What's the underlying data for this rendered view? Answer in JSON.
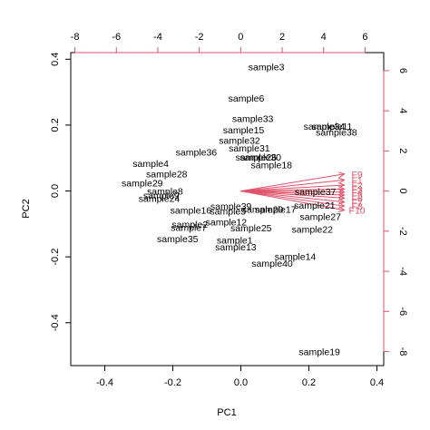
{
  "chart_data": {
    "type": "scatter",
    "subtype": "pca-biplot",
    "title": "",
    "xlabel": "PC1",
    "ylabel": "PC2",
    "xlim": [
      -0.5,
      0.42
    ],
    "ylim": [
      -0.53,
      0.42
    ],
    "x_ticks": [
      -0.4,
      -0.2,
      0.0,
      0.2,
      0.4
    ],
    "y_ticks": [
      -0.4,
      -0.2,
      0.0,
      0.2,
      0.4
    ],
    "secondary_x_ticks": [
      -8,
      -6,
      -4,
      -2,
      0,
      2,
      4,
      6
    ],
    "secondary_y_ticks": [
      -8,
      -6,
      -4,
      -2,
      0,
      2,
      4,
      6
    ],
    "secondary_xlim": [
      -8.2,
      6.9
    ],
    "secondary_ylim": [
      -8.7,
      6.9
    ],
    "grid": false,
    "colors": {
      "points": "#000000",
      "loadings": "#DF536B"
    },
    "points": [
      {
        "label": "sample3",
        "x": 0.075,
        "y": 0.378
      },
      {
        "label": "sample6",
        "x": 0.016,
        "y": 0.282
      },
      {
        "label": "sample33",
        "x": 0.035,
        "y": 0.22
      },
      {
        "label": "sample15",
        "x": 0.008,
        "y": 0.186
      },
      {
        "label": "sample32",
        "x": -0.004,
        "y": 0.154
      },
      {
        "label": "sample31",
        "x": 0.025,
        "y": 0.131
      },
      {
        "label": "sample36",
        "x": -0.131,
        "y": 0.118
      },
      {
        "label": "sample26",
        "x": 0.045,
        "y": 0.104
      },
      {
        "label": "sample30",
        "x": 0.058,
        "y": 0.104
      },
      {
        "label": "sample18",
        "x": 0.09,
        "y": 0.08
      },
      {
        "label": "sample34",
        "x": 0.245,
        "y": 0.197
      },
      {
        "label": "sample11",
        "x": 0.268,
        "y": 0.197
      },
      {
        "label": "sample38",
        "x": 0.281,
        "y": 0.179
      },
      {
        "label": "sample4",
        "x": -0.265,
        "y": 0.084
      },
      {
        "label": "sample28",
        "x": -0.218,
        "y": 0.053
      },
      {
        "label": "sample29",
        "x": -0.29,
        "y": 0.025
      },
      {
        "label": "sample8",
        "x": -0.223,
        "y": 0.0
      },
      {
        "label": "sample9",
        "x": -0.234,
        "y": -0.012
      },
      {
        "label": "sample24",
        "x": -0.24,
        "y": -0.022
      },
      {
        "label": "sample37",
        "x": 0.219,
        "y": -0.001
      },
      {
        "label": "sample21",
        "x": 0.217,
        "y": -0.043
      },
      {
        "label": "sample27",
        "x": 0.234,
        "y": -0.077
      },
      {
        "label": "sample22",
        "x": 0.21,
        "y": -0.115
      },
      {
        "label": "sample39",
        "x": -0.029,
        "y": -0.046
      },
      {
        "label": "sample16",
        "x": -0.147,
        "y": -0.058
      },
      {
        "label": "sample5",
        "x": -0.038,
        "y": -0.06
      },
      {
        "label": "sample20",
        "x": 0.064,
        "y": -0.055
      },
      {
        "label": "sample17",
        "x": 0.102,
        "y": -0.055
      },
      {
        "label": "sample12",
        "x": -0.043,
        "y": -0.093
      },
      {
        "label": "sample2",
        "x": -0.15,
        "y": -0.101
      },
      {
        "label": "sample25",
        "x": 0.03,
        "y": -0.111
      },
      {
        "label": "sample7",
        "x": -0.153,
        "y": -0.11
      },
      {
        "label": "sample35",
        "x": -0.186,
        "y": -0.144
      },
      {
        "label": "sample1",
        "x": -0.018,
        "y": -0.148
      },
      {
        "label": "sample13",
        "x": -0.015,
        "y": -0.169
      },
      {
        "label": "sample14",
        "x": 0.16,
        "y": -0.198
      },
      {
        "label": "sample40",
        "x": 0.092,
        "y": -0.219
      },
      {
        "label": "sample19",
        "x": 0.231,
        "y": -0.488
      }
    ],
    "loadings": [
      {
        "label": "F9",
        "x": 5.0,
        "y": 0.85
      },
      {
        "label": "F1",
        "x": 5.0,
        "y": 0.55
      },
      {
        "label": "F2",
        "x": 5.0,
        "y": 0.3
      },
      {
        "label": "F3",
        "x": 5.0,
        "y": 0.1
      },
      {
        "label": "F4",
        "x": 5.0,
        "y": -0.05
      },
      {
        "label": "F5",
        "x": 5.0,
        "y": -0.2
      },
      {
        "label": "F6",
        "x": 5.0,
        "y": -0.35
      },
      {
        "label": "F7",
        "x": 5.0,
        "y": -0.55
      },
      {
        "label": "F8",
        "x": 5.0,
        "y": -0.75
      },
      {
        "label": "F10",
        "x": 5.0,
        "y": -0.95
      }
    ]
  }
}
